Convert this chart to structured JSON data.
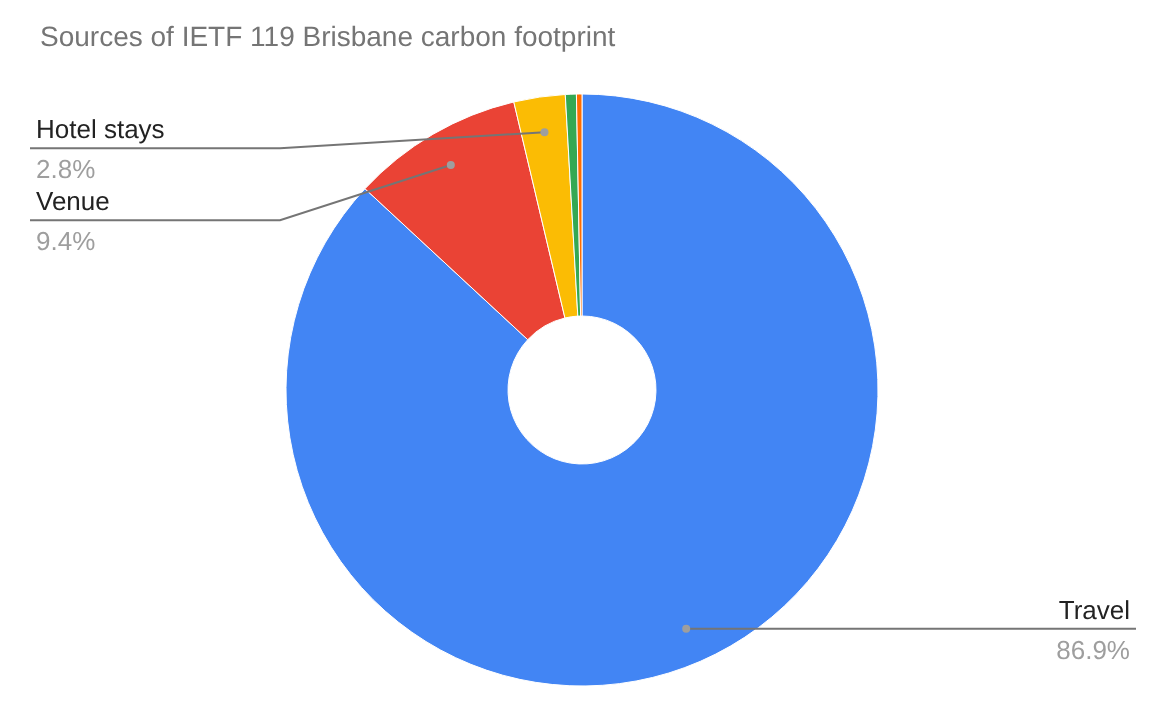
{
  "chart_data": {
    "type": "donut",
    "title": "Sources of IETF 119 Brisbane carbon footprint",
    "categories": [
      "Travel",
      "Venue",
      "Hotel stays",
      null,
      null
    ],
    "values": [
      86.9,
      9.4,
      2.8,
      0.6,
      0.3
    ],
    "colors": [
      "#4285f4",
      "#ea4335",
      "#fbbc04",
      "#34a853",
      "#ff6d01"
    ],
    "value_labels": [
      "86.9%",
      "9.4%",
      "2.8%",
      null,
      null
    ],
    "legend": false
  }
}
